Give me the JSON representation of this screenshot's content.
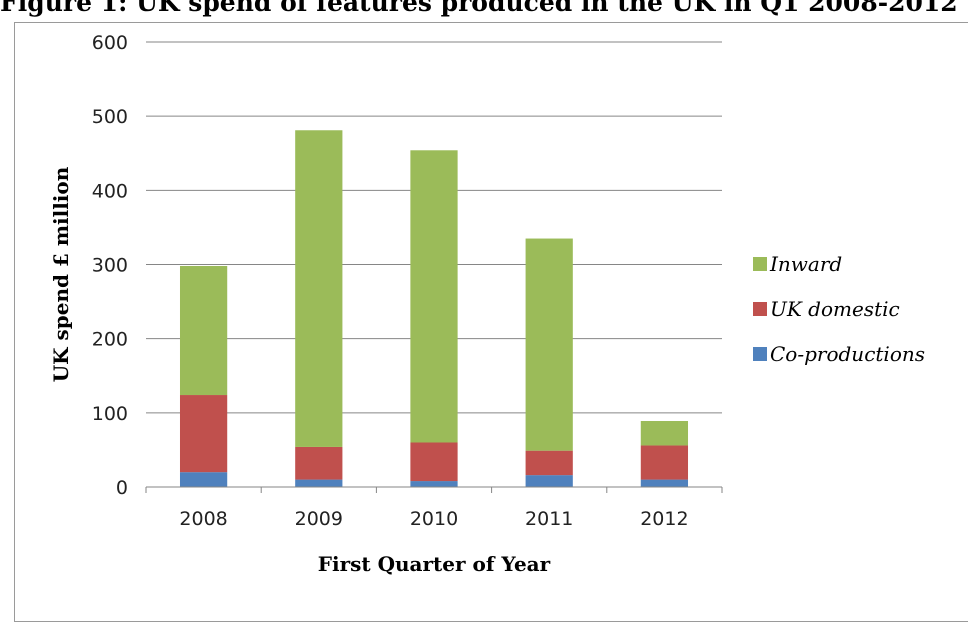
{
  "title": "Figure 1: UK spend of features produced in the UK in Q1 2008-2012",
  "chart_data": {
    "type": "bar",
    "stacked": true,
    "categories": [
      "2008",
      "2009",
      "2010",
      "2011",
      "2012"
    ],
    "series": [
      {
        "name": "Co-productions",
        "color": "#4f81bd",
        "values": [
          20,
          10,
          8,
          16,
          10
        ]
      },
      {
        "name": "UK domestic",
        "color": "#c0504d",
        "values": [
          104,
          44,
          52,
          33,
          46
        ]
      },
      {
        "name": "Inward",
        "color": "#9bbb59",
        "values": [
          174,
          427,
          394,
          286,
          33
        ]
      }
    ],
    "xlabel": "First Quarter of Year",
    "ylabel": "UK spend £ million",
    "ylim": [
      0,
      600
    ],
    "yticks": [
      "0",
      "100",
      "200",
      "300",
      "400",
      "500",
      "600"
    ],
    "grid": true,
    "legend_position": "right",
    "legend_order": [
      "Inward",
      "UK domestic",
      "Co-productions"
    ]
  }
}
